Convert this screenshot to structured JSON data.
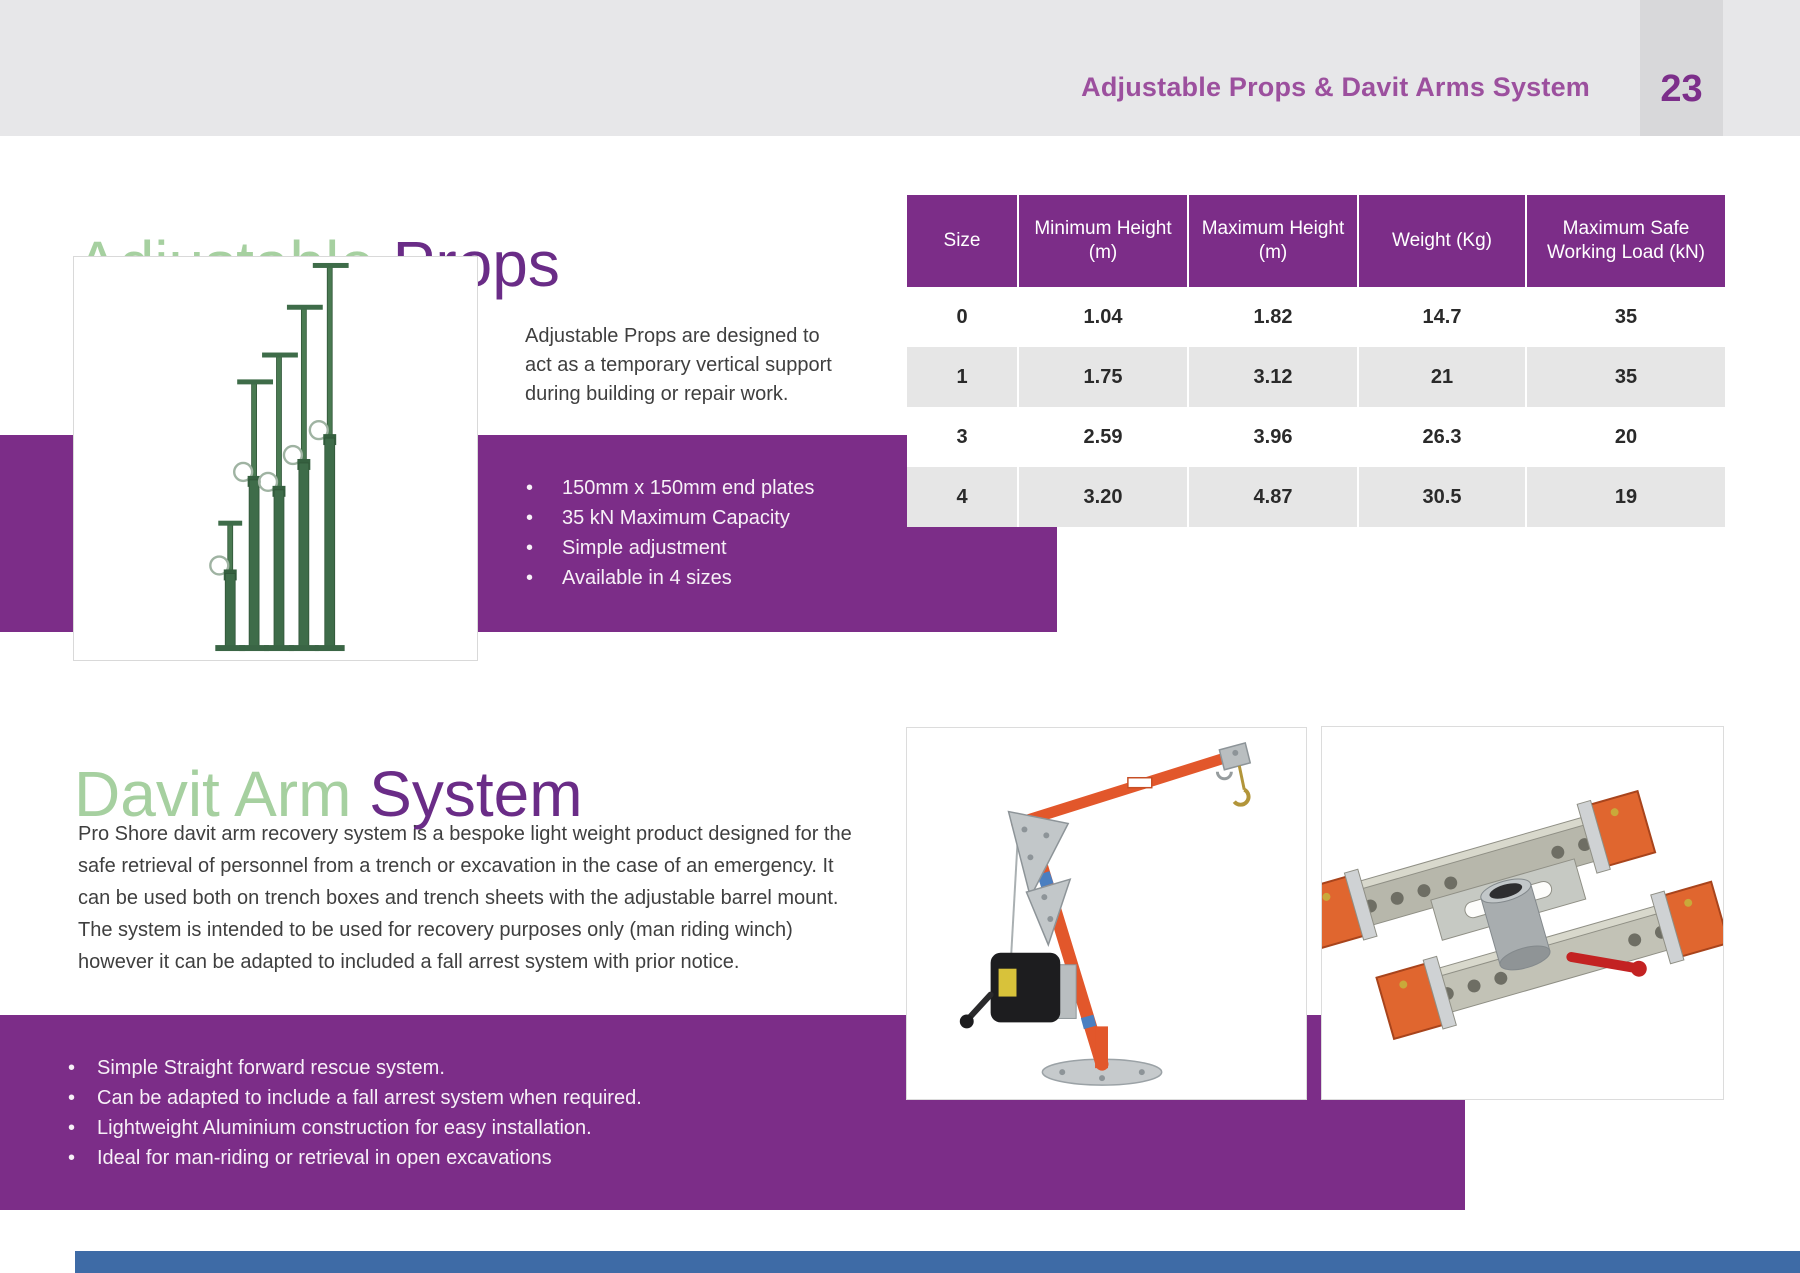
{
  "header": {
    "title": "Adjustable Props & Davit Arms System",
    "page_number": "23"
  },
  "props": {
    "title_accent": "Adjustable ",
    "title_main": "Props",
    "description_lines": [
      "Adjustable Props are designed to",
      "act as a temporary vertical support",
      "during building or repair work."
    ],
    "bullets": [
      "150mm x 150mm end plates",
      "35 kN Maximum Capacity",
      "Simple adjustment",
      "Available in 4 sizes"
    ],
    "table": {
      "columns": [
        "Size",
        "Minimum Height (m)",
        "Maximum Height (m)",
        "Weight (Kg)",
        "Maximum Safe Working Load (kN)"
      ],
      "rows": [
        [
          "0",
          "1.04",
          "1.82",
          "14.7",
          "35"
        ],
        [
          "1",
          "1.75",
          "3.12",
          "21",
          "35"
        ],
        [
          "3",
          "2.59",
          "3.96",
          "26.3",
          "20"
        ],
        [
          "4",
          "3.20",
          "4.87",
          "30.5",
          "19"
        ]
      ]
    }
  },
  "davit": {
    "title_accent": "Davit Arm ",
    "title_main": "System",
    "paragraph_lines": [
      "Pro Shore davit arm recovery system is a bespoke light weight product designed for the",
      "safe retrieval of personnel from a trench or excavation in the case of an emergency. It",
      "can be used both on trench boxes and trench sheets with the adjustable barrel mount.",
      "The system is intended to be used for recovery purposes only (man riding winch)",
      "however it can be adapted to included a fall arrest system with prior notice."
    ],
    "bullets": [
      "Simple Straight forward rescue system.",
      "Can be adapted to include a fall arrest system when required.",
      "Lightweight Aluminium construction for easy installation.",
      "Ideal for man-riding or retrieval in open excavations"
    ]
  },
  "images": {
    "props_photo": "adjustable-props-product-photo",
    "davit_photo": "davit-arm-recovery-crane-photo",
    "mount_photo": "adjustable-barrel-mount-photo"
  },
  "colors": {
    "accent_green": "#a6d0a0",
    "brand_purple": "#7c2d88",
    "title_purple": "#6a2c87",
    "header_title_purple": "#9c509e",
    "page_number_purple": "#7c2e8a",
    "header_gray": "#e7e7e9",
    "page_strip_gray": "#d8d8da",
    "table_stripe_gray": "#e6e6e6",
    "footer_blue": "#3e6ba6"
  }
}
